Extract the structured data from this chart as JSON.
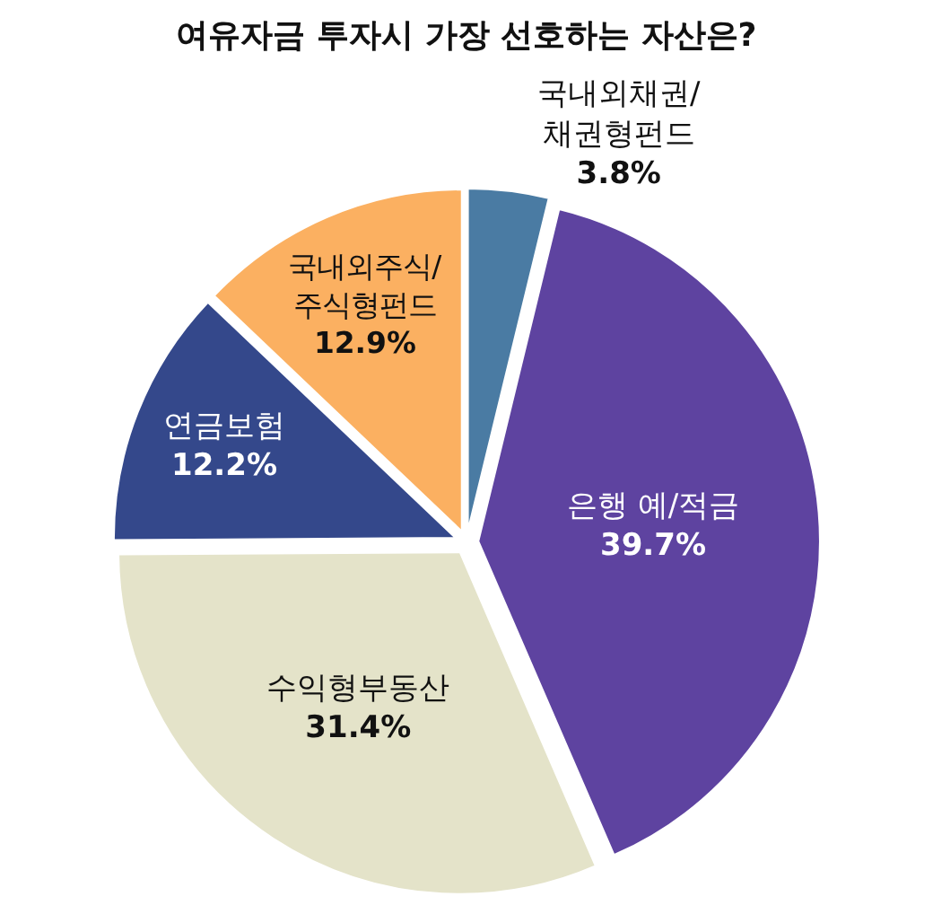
{
  "chart_data": {
    "type": "pie",
    "title": "여유자금 투자시 가장 선호하는 자산은?",
    "categories": [
      "국내외채권/\n채권형펀드",
      "은행 예/적금",
      "수익형부동산",
      "연금보험",
      "국내외주식/\n주식형펀드"
    ],
    "values": [
      3.8,
      39.7,
      31.4,
      12.2,
      12.9
    ],
    "value_labels": [
      "3.8%",
      "39.7%",
      "31.4%",
      "12.2%",
      "12.9%"
    ],
    "colors": [
      "#4a7ba3",
      "#5e43a0",
      "#e4e3c9",
      "#34488b",
      "#fbb061"
    ]
  }
}
